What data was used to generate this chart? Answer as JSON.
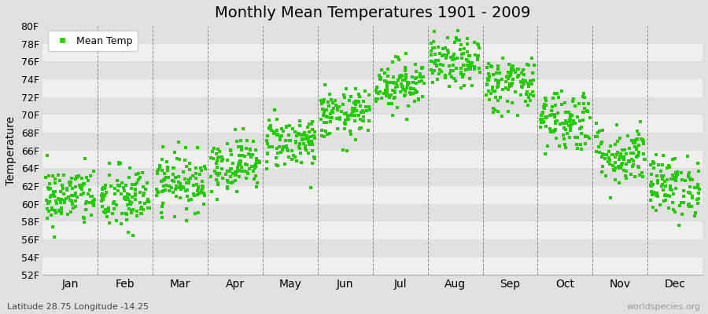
{
  "title": "Monthly Mean Temperatures 1901 - 2009",
  "ylabel": "Temperature",
  "subtitle": "Latitude 28.75 Longitude -14.25",
  "watermark": "worldspecies.org",
  "legend_label": "Mean Temp",
  "dot_color": "#22cc00",
  "background_color": "#e0e0e0",
  "band_color": "#efefef",
  "ylim": [
    52,
    80
  ],
  "yticks": [
    52,
    54,
    56,
    58,
    60,
    62,
    64,
    66,
    68,
    70,
    72,
    74,
    76,
    78,
    80
  ],
  "months": [
    "Jan",
    "Feb",
    "Mar",
    "Apr",
    "May",
    "Jun",
    "Jul",
    "Aug",
    "Sep",
    "Oct",
    "Nov",
    "Dec"
  ],
  "monthly_means": [
    60.8,
    60.5,
    62.5,
    64.5,
    67.0,
    70.0,
    73.5,
    75.8,
    73.5,
    69.5,
    65.5,
    62.0
  ],
  "monthly_stds": [
    1.7,
    1.9,
    1.6,
    1.5,
    1.5,
    1.4,
    1.4,
    1.4,
    1.6,
    1.8,
    1.7,
    1.7
  ],
  "n_years": 109,
  "seed": 42,
  "figsize": [
    9.0,
    4.0
  ],
  "dpi": 100
}
